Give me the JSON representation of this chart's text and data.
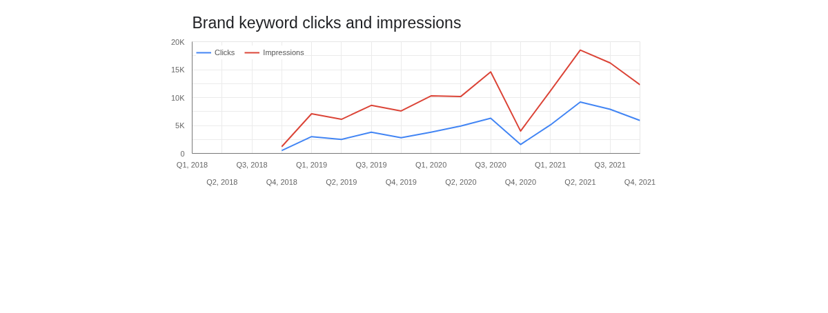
{
  "chart_data": {
    "type": "line",
    "title": "Brand keyword clicks and impressions",
    "categories": [
      "Q1, 2018",
      "Q2, 2018",
      "Q3, 2018",
      "Q4, 2018",
      "Q1, 2019",
      "Q2, 2019",
      "Q3, 2019",
      "Q4, 2019",
      "Q1, 2020",
      "Q2, 2020",
      "Q3, 2020",
      "Q4, 2020",
      "Q1, 2021",
      "Q2, 2021",
      "Q3, 2021",
      "Q4, 2021"
    ],
    "series": [
      {
        "name": "Clicks",
        "color": "#4285f4",
        "values": [
          null,
          null,
          null,
          500,
          3000,
          2500,
          3800,
          2800,
          3800,
          4900,
          6300,
          1600,
          5100,
          9200,
          7900,
          5900
        ]
      },
      {
        "name": "Impressions",
        "color": "#db4437",
        "values": [
          null,
          null,
          null,
          1200,
          7100,
          6100,
          8600,
          7600,
          10300,
          10200,
          14600,
          4000,
          11200,
          18500,
          16200,
          12300
        ]
      }
    ],
    "ylim": [
      0,
      20000
    ],
    "yticks": [
      0,
      {
        "value": 2500,
        "label": null
      },
      {
        "value": 5000,
        "label": "5K"
      },
      {
        "value": 7500,
        "label": null
      },
      {
        "value": 10000,
        "label": "10K"
      },
      {
        "value": 12500,
        "label": null
      },
      {
        "value": 15000,
        "label": "15K"
      },
      {
        "value": 17500,
        "label": null
      },
      {
        "value": 20000,
        "label": "20K"
      }
    ],
    "grid": true,
    "legend": "top left",
    "marker": "none",
    "line_style": "solid"
  }
}
